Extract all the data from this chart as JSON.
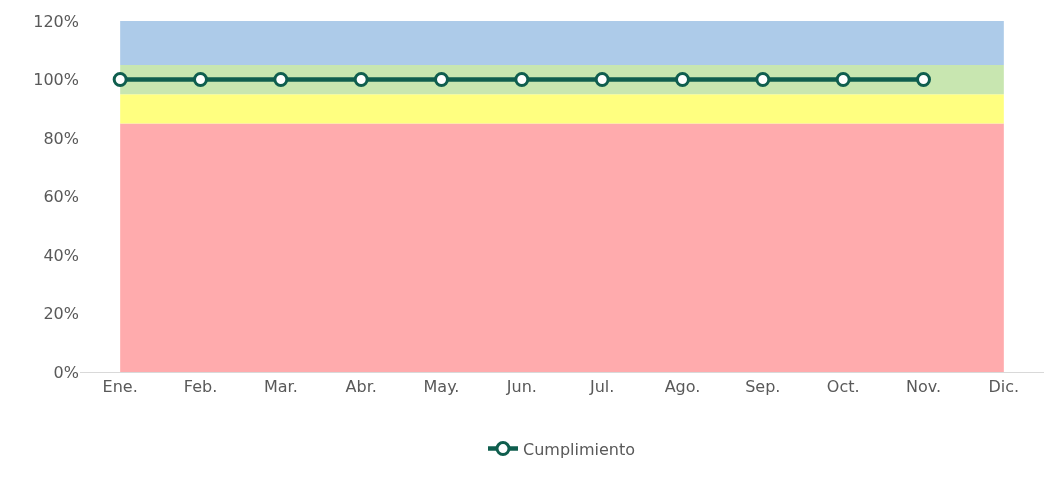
{
  "chart_data": {
    "type": "line",
    "categories": [
      "Ene.",
      "Feb.",
      "Mar.",
      "Abr.",
      "May.",
      "Jun.",
      "Jul.",
      "Ago.",
      "Sep.",
      "Oct.",
      "Nov.",
      "Dic."
    ],
    "series": [
      {
        "name": "Cumplimiento",
        "color": "#0f5e4e",
        "values": [
          100,
          100,
          100,
          100,
          100,
          100,
          100,
          100,
          100,
          100,
          100,
          null
        ]
      }
    ],
    "bands": [
      {
        "axis": "y",
        "from": 0,
        "to": 85,
        "color": "#ffabad"
      },
      {
        "axis": "y",
        "from": 85,
        "to": 95,
        "color": "#ffff80"
      },
      {
        "axis": "y",
        "from": 95,
        "to": 105,
        "color": "#c8e6b0"
      },
      {
        "axis": "y",
        "from": 105,
        "to": 120,
        "color": "#adcbe9"
      }
    ],
    "ylim": [
      0,
      120
    ],
    "yticks": [
      {
        "value": 0,
        "label": "0%"
      },
      {
        "value": 20,
        "label": "20%"
      },
      {
        "value": 40,
        "label": "40%"
      },
      {
        "value": 60,
        "label": "60%"
      },
      {
        "value": 80,
        "label": "80%"
      },
      {
        "value": 100,
        "label": "100%"
      },
      {
        "value": 120,
        "label": "120%"
      }
    ],
    "grid": false,
    "legend": "bottom",
    "marker": "circle",
    "line_style": "solid"
  }
}
